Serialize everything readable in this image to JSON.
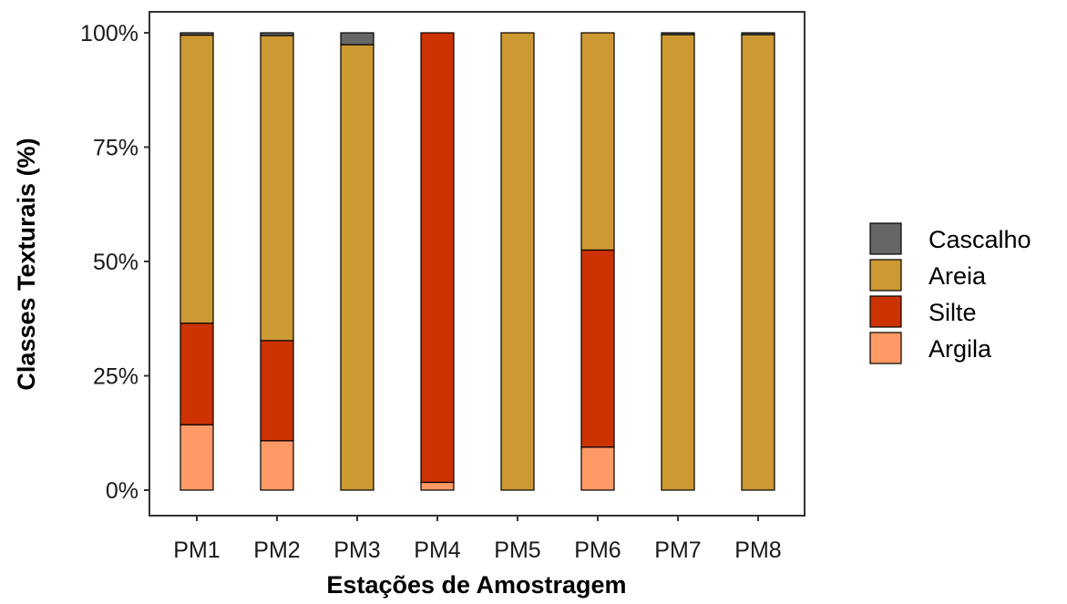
{
  "chart_data": {
    "type": "bar",
    "stacked": true,
    "normalized": true,
    "title": "",
    "xlabel": "Estações de Amostragem",
    "ylabel": "Classes Texturais (%)",
    "ylim": [
      0,
      100
    ],
    "yticks": [
      "0%",
      "25%",
      "50%",
      "75%",
      "100%"
    ],
    "categories": [
      "PM1",
      "PM2",
      "PM3",
      "PM4",
      "PM5",
      "PM6",
      "PM7",
      "PM8"
    ],
    "series": [
      {
        "name": "Argila",
        "color": "#FF9966",
        "values": [
          14.3,
          10.8,
          0,
          1.7,
          0,
          9.4,
          0,
          0
        ]
      },
      {
        "name": "Silte",
        "color": "#CC3300",
        "values": [
          22.2,
          21.9,
          0,
          98.3,
          0,
          43.1,
          0,
          0
        ]
      },
      {
        "name": "Areia",
        "color": "#CC9933",
        "values": [
          63.0,
          66.7,
          97.4,
          0,
          100,
          47.5,
          99.6,
          99.6
        ]
      },
      {
        "name": "Cascalho",
        "color": "#666666",
        "values": [
          0.5,
          0.6,
          2.6,
          0,
          0,
          0,
          0.4,
          0.4
        ]
      }
    ],
    "legend_order": [
      "Cascalho",
      "Areia",
      "Silte",
      "Argila"
    ],
    "legend_position": "right",
    "grid": false
  }
}
